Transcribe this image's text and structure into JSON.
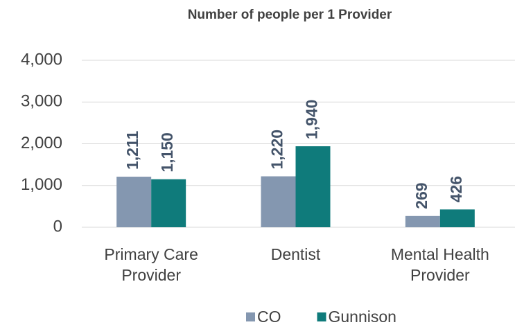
{
  "chart_data": {
    "type": "bar",
    "title": "Number of people per 1 Provider",
    "categories": [
      "Primary Care Provider",
      "Dentist",
      "Mental Health Provider"
    ],
    "series": [
      {
        "name": "CO",
        "color": "#8497b0",
        "values": [
          1211,
          1220,
          269
        ],
        "value_labels": [
          "1,211",
          "1,220",
          "269"
        ]
      },
      {
        "name": "Gunnison",
        "color": "#0f7b7b",
        "values": [
          1150,
          1940,
          426
        ],
        "value_labels": [
          "1,150",
          "1,940",
          "426"
        ]
      }
    ],
    "ylim": [
      0,
      4000
    ],
    "yticks": [
      0,
      {
        "value": 1000,
        "label": "1,000"
      },
      {
        "value": 2000,
        "label": "2,000"
      },
      {
        "value": 3000,
        "label": "3,000"
      },
      {
        "value": 4000,
        "label": "4,000"
      }
    ],
    "grid": true,
    "legend": "bottom"
  }
}
